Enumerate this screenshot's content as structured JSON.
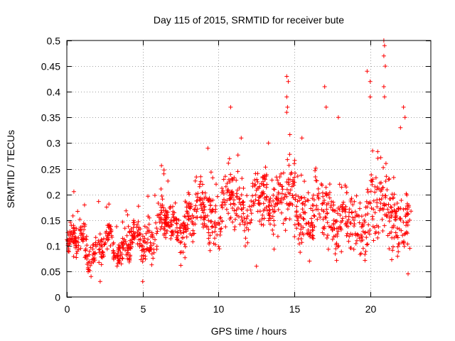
{
  "chart_data": {
    "type": "scatter",
    "title": "Day 115 of 2015, SRMTID for receiver bute",
    "xlabel": "GPS time / hours",
    "ylabel": "SRMTID / TECUs",
    "xlim": [
      0,
      24
    ],
    "ylim": [
      0,
      0.5
    ],
    "xticks": [
      0,
      5,
      10,
      15,
      20
    ],
    "xtick_labels": [
      "0",
      "5",
      "10",
      "15",
      "20"
    ],
    "yticks": [
      0,
      0.05,
      0.1,
      0.15,
      0.2,
      0.25,
      0.3,
      0.35,
      0.4,
      0.45,
      0.5
    ],
    "ytick_labels": [
      "0",
      "0.05",
      "0.1",
      "0.15",
      "0.2",
      "0.25",
      "0.3",
      "0.35",
      "0.4",
      "0.45",
      "0.5"
    ],
    "grid": true,
    "marker": "+",
    "color": "#ff0000",
    "trend": {
      "x": [
        0,
        1,
        2,
        3,
        4,
        5,
        6,
        7,
        8,
        9,
        10,
        11,
        12,
        13,
        14,
        15,
        16,
        17,
        18,
        19,
        20,
        21,
        22,
        22.7
      ],
      "y": [
        0.09,
        0.11,
        0.085,
        0.1,
        0.11,
        0.1,
        0.14,
        0.14,
        0.15,
        0.18,
        0.16,
        0.19,
        0.17,
        0.18,
        0.2,
        0.18,
        0.17,
        0.16,
        0.16,
        0.13,
        0.18,
        0.16,
        0.15,
        0.12
      ],
      "spread": [
        0.03,
        0.035,
        0.03,
        0.03,
        0.04,
        0.04,
        0.045,
        0.045,
        0.05,
        0.06,
        0.06,
        0.06,
        0.06,
        0.06,
        0.07,
        0.07,
        0.07,
        0.08,
        0.08,
        0.07,
        0.09,
        0.09,
        0.08,
        0.07
      ]
    },
    "peaks": [
      {
        "x": 10.8,
        "y": 0.37
      },
      {
        "x": 11.5,
        "y": 0.31
      },
      {
        "x": 13.3,
        "y": 0.3
      },
      {
        "x": 14.5,
        "y": 0.43
      },
      {
        "x": 14.6,
        "y": 0.42
      },
      {
        "x": 14.5,
        "y": 0.39
      },
      {
        "x": 14.55,
        "y": 0.37
      },
      {
        "x": 14.5,
        "y": 0.36
      },
      {
        "x": 15.5,
        "y": 0.31
      },
      {
        "x": 17.0,
        "y": 0.41
      },
      {
        "x": 17.1,
        "y": 0.37
      },
      {
        "x": 17.9,
        "y": 0.35
      },
      {
        "x": 19.8,
        "y": 0.44
      },
      {
        "x": 20.0,
        "y": 0.42
      },
      {
        "x": 20.0,
        "y": 0.39
      },
      {
        "x": 20.9,
        "y": 0.5
      },
      {
        "x": 20.95,
        "y": 0.49
      },
      {
        "x": 20.9,
        "y": 0.47
      },
      {
        "x": 21.0,
        "y": 0.45
      },
      {
        "x": 20.9,
        "y": 0.41
      },
      {
        "x": 20.95,
        "y": 0.39
      },
      {
        "x": 22.2,
        "y": 0.37
      },
      {
        "x": 22.3,
        "y": 0.35
      },
      {
        "x": 22.0,
        "y": 0.33
      },
      {
        "x": 9.3,
        "y": 0.29
      },
      {
        "x": 6.4,
        "y": 0.24
      },
      {
        "x": 12.5,
        "y": 0.06
      },
      {
        "x": 16.0,
        "y": 0.07
      },
      {
        "x": 22.5,
        "y": 0.045
      },
      {
        "x": 5.0,
        "y": 0.03
      },
      {
        "x": 2.2,
        "y": 0.03
      }
    ],
    "num_points": 1400
  }
}
